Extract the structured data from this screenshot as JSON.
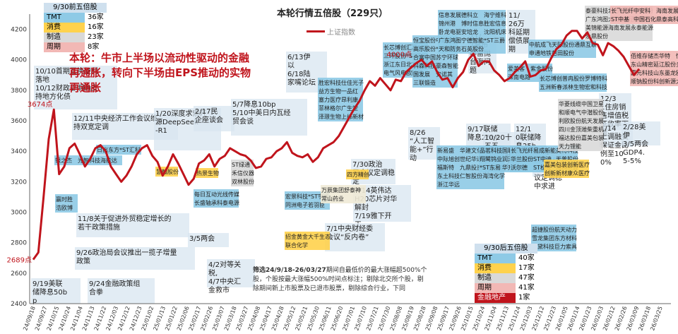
{
  "title": "本轮行情五倍股（229只）",
  "legend_label": "上证指数",
  "summary": "本轮：牛市上半场以流动性驱动的金融再通胀，转向下半场由EPS推动的实物再通胀",
  "note_bold": "筛选24/9/18-26/03/27",
  "note_rest": "期间自最低价的最大涨幅超500%个股，个股按最大涨幅500%时间点标注；剔除北交所个股，剔除期间新上市股票及已退市股票，剔除综合行业，下同",
  "colors": {
    "line": "#c0141c",
    "tmt": "#8ecae6",
    "consumer": "#ffd24d",
    "manufacturing": "#d9d9d9",
    "cyclical": "#f2b8b5",
    "event": "#d8e6f0",
    "finance": "#c0141c"
  },
  "legend_left": {
    "header": "9/30前五倍股",
    "rows": [
      {
        "name": "TMT",
        "count": "36家"
      },
      {
        "name": "消费",
        "count": "16家"
      },
      {
        "name": "制造",
        "count": "23家"
      },
      {
        "name": "周期",
        "count": "8家"
      }
    ]
  },
  "legend_right": {
    "header": "9/30后五倍股",
    "rows": [
      {
        "name": "TMT",
        "count": "40家"
      },
      {
        "name": "消费",
        "count": "17家"
      },
      {
        "name": "制造",
        "count": "47家"
      },
      {
        "name": "周期",
        "count": "41家"
      },
      {
        "name": "金融地产",
        "count": "1家"
      }
    ]
  },
  "point_labels": [
    {
      "text": "2689点"
    },
    {
      "text": "3674点"
    },
    {
      "text": "4000点"
    }
  ],
  "events": [
    {
      "text": "10/10首期互换便利落地 10/12财政部明确支持地方化债"
    },
    {
      "text": "12/11中央经济工作会议维持双宽定调"
    },
    {
      "text": "11/8关于促进外贸稳定增长的若干政策措施"
    },
    {
      "text": "9/26政治局会议推出一揽子增量政策"
    },
    {
      "text": "9/19美联储降息50bp"
    },
    {
      "text": "9/24金融政策组合拳"
    },
    {
      "text": "1/20深度求索开源DeepSeek-R1"
    },
    {
      "text": "2/17民企座谈会"
    },
    {
      "text": "3/5两会"
    },
    {
      "text": "4/2对等关税, 4/7中央汇金救市"
    },
    {
      "text": "5/7降息10bp 5/10中美日内瓦经贸会谈"
    },
    {
      "text": "6/13伊以 6/18陆家嘴论坛"
    },
    {
      "text": "7/30政治局会议定调稳定"
    },
    {
      "text": "7/14英伟达H20芯片对华解封 7/19雅下开工"
    },
    {
      "text": "7/1中央财经委会议“反内卷”"
    },
    {
      "text": "8/26“人工智能+”行动"
    },
    {
      "text": "9/17联储降息25bp"
    },
    {
      "text": "10/20十五五 10/29联储降息25bp"
    },
    {
      "text": "11/7高市早苗抛台海问题"
    },
    {
      "text": "11/26万科延期偿债展期"
    },
    {
      "text": "12/10联储降息25bp"
    },
    {
      "text": "12/11中央经济工作会议定调稳中求进"
    },
    {
      "text": "12/31住房销售增值税征收率下调"
    },
    {
      "text": "1/14上调融资保证金比例至100%"
    },
    {
      "text": "2/28美伊 3/5两会GDP4.5-5%"
    }
  ],
  "stock_groups": [
    {
      "cat": "tmt",
      "items": [
        "日出东方",
        "*ST汇科"
      ]
    },
    {
      "cat": "tmt",
      "items": [
        "银之杰",
        "光智科技",
        "海能达"
      ]
    },
    {
      "cat": "tmt",
      "items": [
        "赢时胜",
        "浩欧博"
      ]
    },
    {
      "cat": "tmt",
      "items": [
        "每日互动",
        "光线传媒",
        "长盛轴承",
        "科泰电源"
      ]
    },
    {
      "cat": "manufacturing",
      "items": [
        "ST绿通",
        "禾信仪器",
        "双林股份"
      ]
    },
    {
      "cat": "consumer",
      "items": [
        "慧翰股份"
      ]
    },
    {
      "cat": "consumer",
      "items": [
        "热景生物"
      ]
    },
    {
      "cat": "tmt",
      "items": [
        "宏景科技",
        "*ST宇顺",
        "同洲电子",
        "若羽臣"
      ]
    },
    {
      "cat": "consumer",
      "items": [
        "招金黄金",
        "大千生态",
        "联合化学"
      ]
    },
    {
      "cat": "event",
      "items": [
        "万辰集团",
        "舒泰神",
        "常山药业"
      ]
    },
    {
      "cat": "consumer",
      "items": [
        "四方精创"
      ]
    },
    {
      "cat": "tmt",
      "items": [
        "胜宏科技",
        "仕佳光子",
        "益方生物",
        "一品红",
        "塞力医疗",
        "昂利康",
        "菲林格尔",
        "广生堂",
        "泽璟生物",
        "上纬新材"
      ]
    },
    {
      "cat": "tmt",
      "items": [
        "长芯博创",
        "汇嘉时代",
        "三环股份",
        "*ST亚振",
        "浙江东日",
        "北方长龙",
        "电气风电",
        "欧陆通"
      ]
    },
    {
      "cat": "tmt",
      "items": [
        "恒宝股份",
        "中超控股",
        "高乐股份",
        "*ST张汇",
        "合富中国",
        "苏宁环球",
        "科森科技",
        "豪森智能",
        "国发展",
        "安诺其",
        "三联锻造"
      ]
    },
    {
      "cat": "tmt",
      "items": [
        "信息发展",
        "德科立",
        "海宁维科",
        "锦州港",
        "博时信息",
        "胜宏信息",
        "卧龙电驱",
        "安培龙",
        "沈阳机床",
        "广东鸿图",
        "宁德智能",
        "*ST三爵",
        "天和防务",
        "石英股份"
      ]
    },
    {
      "cat": "tmt",
      "items": [
        "新易盛",
        "华建文化",
        "隆扬电子",
        "中际旭创",
        "世纪华通",
        "浦东建设",
        "福斯特",
        "九鼎投资",
        "华胜天成",
        "东土科技",
        "仁智股份",
        "海湾化学",
        "浙江华远"
      ]
    },
    {
      "cat": "tmt",
      "items": [
        "品茗科技",
        "国联股份",
        "香农芯创",
        "翔鹭钨业",
        "润泽科技",
        "海天味业",
        "*ST东易",
        "华升股份"
      ]
    },
    {
      "cat": "tmt",
      "items": [
        "长飞光纤",
        "易成新能",
        "英特科技",
        "华兰股份",
        "ST中迪",
        "天普股份",
        "沃尔德",
        "ST松发",
        "海科新源"
      ]
    },
    {
      "cat": "tmt",
      "items": [
        "爱美客",
        "紫金股份",
        "深南电路"
      ]
    },
    {
      "cat": "tmt",
      "items": [
        "中航成飞",
        "天际股份",
        "通鼎互联",
        "申通地铁",
        "芭田股份"
      ]
    },
    {
      "cat": "tmt",
      "items": [
        "长芯博创",
        "普冉股份",
        "罗博特科",
        "五洲新春",
        "派林生物",
        "宏和科技"
      ]
    },
    {
      "cat": "tmt",
      "items": [
        "超捷股份",
        "航天动力",
        "雪龙集团",
        "东方材料",
        "蓝黛科技",
        "巨力索具"
      ]
    },
    {
      "cat": "manufacturing",
      "items": [
        "华菱线缆",
        "中国卫星",
        "和顺电气",
        "中潜股份",
        "利欧股份",
        "航天发展",
        "四川金顶",
        "潍柴重机",
        "福达股份",
        "嘉美包装",
        "天力锂能"
      ]
    },
    {
      "cat": "consumer",
      "items": [
        "嘉美包装",
        "创新医疗",
        "创新新材",
        "康众医疗"
      ]
    },
    {
      "cat": "manufacturing",
      "items": [
        "泰豪科技",
        "北方长龙",
        "天声股份",
        "广东鸿图",
        "大有能源",
        "西部材料",
        "美锦能源",
        "海南发展",
        "永泰能源",
        "永鼎股份"
      ]
    },
    {
      "cat": "cyclical",
      "items": [
        "长飞光纤",
        "中安科",
        "海南发展",
        "ST中基",
        "中国石化",
        "鼎泰高科"
      ]
    },
    {
      "cat": "cyclical",
      "items": [
        "佰维存储",
        "杰华特",
        "恒坤新材",
        "江丰电子",
        "东山精密",
        "延江股份",
        "多氟多",
        "钢研纳克",
        "嘉元科技",
        "山东墨龙",
        "欧科亿",
        "智洋创新",
        "顺钠股份",
        "科创新源",
        "大越期货",
        "恒誉环保"
      ]
    }
  ],
  "chart_data": {
    "type": "line",
    "title": "本轮行情五倍股（229只）",
    "series": [
      {
        "name": "上证指数",
        "values": [
          2689,
          2736,
          3100,
          3480,
          3674,
          3250,
          3300,
          3420,
          3450,
          3380,
          3300,
          3350,
          3420,
          3440,
          3400,
          3300,
          3250,
          3200,
          3240,
          3300,
          3380,
          3420,
          3440,
          3370,
          3330,
          3240,
          3300,
          3380,
          3320,
          3250,
          3180,
          3220,
          3320,
          3340,
          3380,
          3300,
          3350,
          3370,
          3420,
          3400,
          3380,
          3370,
          3340,
          3290,
          3300,
          3350,
          3360,
          3400,
          3420,
          3460,
          3390,
          3370,
          3360,
          3380,
          3330,
          3360,
          3420,
          3440,
          3460,
          3500,
          3560,
          3620,
          3680,
          3730,
          3800,
          3860,
          3830,
          3880,
          3840,
          3800,
          3870,
          3860,
          3920,
          3950,
          3980,
          4000,
          3960,
          3990,
          3920,
          3870,
          3880,
          3820,
          3880,
          3920,
          4000,
          4040,
          3960,
          3990,
          3990,
          3930,
          3900,
          3860,
          3880,
          3920,
          3950,
          3990,
          3890,
          3900,
          3930,
          3940,
          4010,
          4070,
          4100,
          4160,
          4190,
          4190,
          4140,
          4180,
          4110,
          4100,
          4030,
          4110,
          4090,
          4060,
          4020,
          3960,
          3900,
          3940
        ]
      }
    ],
    "x_tick_labels": [
      "24/09/18",
      "24/09/27",
      "24/10/15",
      "24/10/24",
      "24/11/04",
      "24/11/13",
      "24/11/22",
      "24/12/03",
      "24/12/12",
      "24/12/23",
      "25/01/02",
      "25/01/13",
      "25/01/22",
      "25/02/06",
      "25/02/17",
      "25/02/26",
      "25/03/07",
      "25/03/18",
      "25/03/27",
      "25/04/08",
      "25/04/17",
      "25/04/28",
      "25/05/12",
      "25/05/21",
      "25/05/30",
      "25/06/11",
      "25/06/20",
      "25/07/01",
      "25/07/10",
      "25/07/21",
      "25/07/30",
      "25/08/08",
      "25/08/19",
      "25/08/28",
      "25/09/08",
      "25/09/17",
      "25/09/26",
      "25/10/15",
      "25/10/24",
      "25/11/04",
      "25/11/13",
      "25/11/24",
      "25/12/03",
      "25/12/12",
      "25/12/23",
      "26/01/05",
      "26/01/14",
      "26/01/23",
      "26/02/03",
      "26/02/12",
      "26/02/26",
      "26/03/09",
      "26/03/18",
      "26/03/25"
    ],
    "y_ticks": [
      2400,
      2600,
      2800,
      3000,
      3200,
      3400,
      3600,
      3800,
      4000,
      4200
    ],
    "ylim": [
      2400,
      4300
    ],
    "grid": false,
    "legend": "top-center"
  }
}
